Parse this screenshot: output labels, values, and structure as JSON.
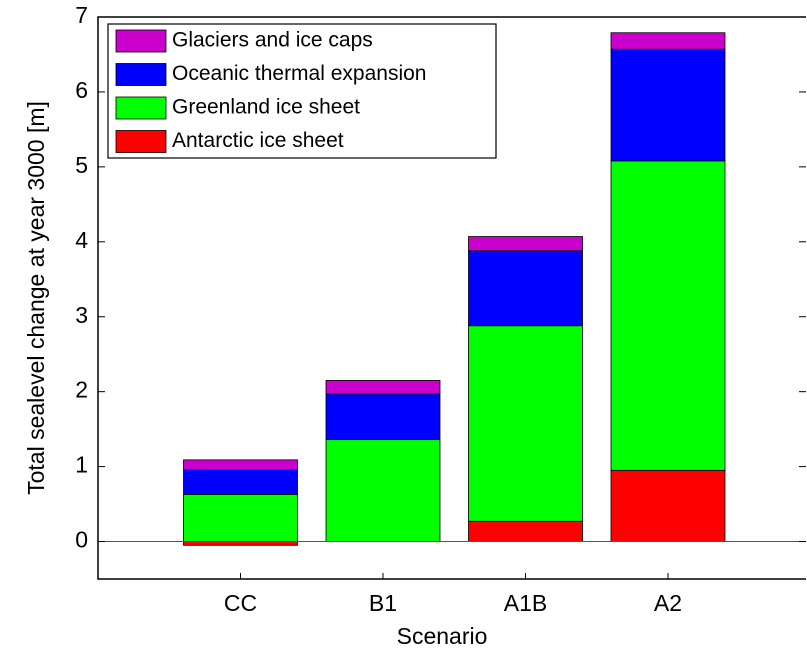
{
  "chart_data": {
    "type": "stacked-bar",
    "x_label": "Scenario",
    "y_label": "Total sealevel change at year 3000 [m]",
    "categories": [
      "CC",
      "B1",
      "A1B",
      "A2"
    ],
    "series": [
      {
        "name": "Antarctic ice sheet",
        "color": "#ff0000",
        "values": [
          -0.05,
          0,
          0.27,
          0.95
        ]
      },
      {
        "name": "Greenland ice sheet",
        "color": "#00ff00",
        "values": [
          0.63,
          1.36,
          2.61,
          4.13
        ]
      },
      {
        "name": "Oceanic thermal expansion",
        "color": "#0000ff",
        "values": [
          0.33,
          0.61,
          1.0,
          1.49
        ]
      },
      {
        "name": "Glaciers and ice caps",
        "color": "#cc00cc",
        "values": [
          0.13,
          0.18,
          0.19,
          0.22
        ]
      }
    ],
    "ylim": [
      -0.5,
      7
    ],
    "yticks": [
      0,
      1,
      2,
      3,
      4,
      5,
      6,
      7
    ],
    "legend": "upper left"
  }
}
